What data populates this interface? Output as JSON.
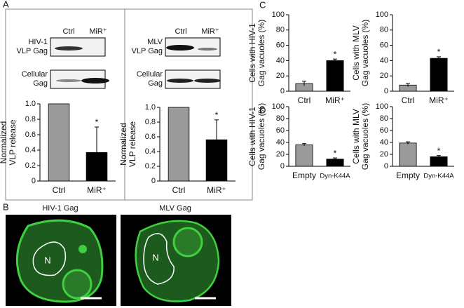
{
  "panels": [
    "A",
    "B",
    "C",
    "D"
  ],
  "blots": {
    "hiv": {
      "lane_labels": [
        "Ctrl",
        "MiR⁺"
      ],
      "rows": [
        [
          "HIV-1",
          "VLP Gag"
        ],
        [
          "Cellular",
          "Gag"
        ]
      ]
    },
    "mlv": {
      "lane_labels": [
        "Ctrl",
        "MiR⁺"
      ],
      "rows": [
        [
          "MLV",
          "VLP Gag"
        ],
        [
          "Cellular",
          "Gag"
        ]
      ]
    }
  },
  "micrographs": {
    "titles": [
      "HIV-1 Gag",
      "MLV Gag"
    ],
    "nucleus": "N"
  },
  "chart_data": [
    {
      "type": "bar",
      "ylabel": [
        "Normalized",
        "VLP release"
      ],
      "categories": [
        "Ctrl",
        "MiR⁺"
      ],
      "values": [
        1.0,
        0.37
      ],
      "errors": [
        0,
        0.33
      ],
      "colors": [
        "#9a9a9a",
        "#000000"
      ],
      "annotation": "*",
      "ylim": [
        0,
        1
      ],
      "yticks": [
        0,
        0.2,
        0.4,
        0.6,
        0.8,
        {
          "value": 1,
          "label": "1.0"
        }
      ]
    },
    {
      "type": "bar",
      "ylabel": [
        "Normalized",
        "VLP release"
      ],
      "categories": [
        "Ctrl",
        "MiR⁺"
      ],
      "values": [
        1.0,
        0.56
      ],
      "errors": [
        0,
        0.27
      ],
      "colors": [
        "#9a9a9a",
        "#000000"
      ],
      "annotation": "*",
      "ylim": [
        0,
        1
      ],
      "yticks": [
        0,
        0.2,
        0.4,
        0.6,
        0.8,
        {
          "value": 1,
          "label": "1.0"
        }
      ]
    },
    {
      "type": "bar",
      "ylabel": [
        "Cells with HIV-1",
        "Gag vacuoles (%)"
      ],
      "categories": [
        "Ctrl",
        "MiR⁺"
      ],
      "values": [
        10,
        40
      ],
      "errors": [
        3,
        2
      ],
      "colors": [
        "#9a9a9a",
        "#000000"
      ],
      "annotation": "*",
      "ylim": [
        0,
        100
      ],
      "yticks": [
        0,
        20,
        40,
        60,
        80,
        100
      ]
    },
    {
      "type": "bar",
      "ylabel": [
        "Cells with MLV",
        "Gag vacuoles (%)"
      ],
      "categories": [
        "Ctrl",
        "MiR⁺"
      ],
      "values": [
        8,
        43
      ],
      "errors": [
        2,
        2
      ],
      "colors": [
        "#9a9a9a",
        "#000000"
      ],
      "annotation": "*",
      "ylim": [
        0,
        100
      ],
      "yticks": [
        0,
        20,
        40,
        60,
        80,
        100
      ]
    },
    {
      "type": "bar",
      "ylabel": [
        "Cells with HIV-1",
        "Gag vacuoles (%)"
      ],
      "categories": [
        "Empty",
        "Dyn-K44A"
      ],
      "values": [
        36,
        12
      ],
      "errors": [
        2,
        2
      ],
      "colors": [
        "#9a9a9a",
        "#000000"
      ],
      "annotation": "*",
      "ylim": [
        0,
        100
      ],
      "yticks": [
        0,
        20,
        40,
        60,
        80,
        100
      ]
    },
    {
      "type": "bar",
      "ylabel": [
        "Cells with MLV",
        "Gag vacuoles (%)"
      ],
      "categories": [
        "Empty",
        "Dyn-K44A"
      ],
      "values": [
        39,
        16
      ],
      "errors": [
        2,
        2
      ],
      "colors": [
        "#9a9a9a",
        "#000000"
      ],
      "annotation": "*",
      "ylim": [
        0,
        100
      ],
      "yticks": [
        0,
        20,
        40,
        60,
        80,
        100
      ]
    }
  ]
}
